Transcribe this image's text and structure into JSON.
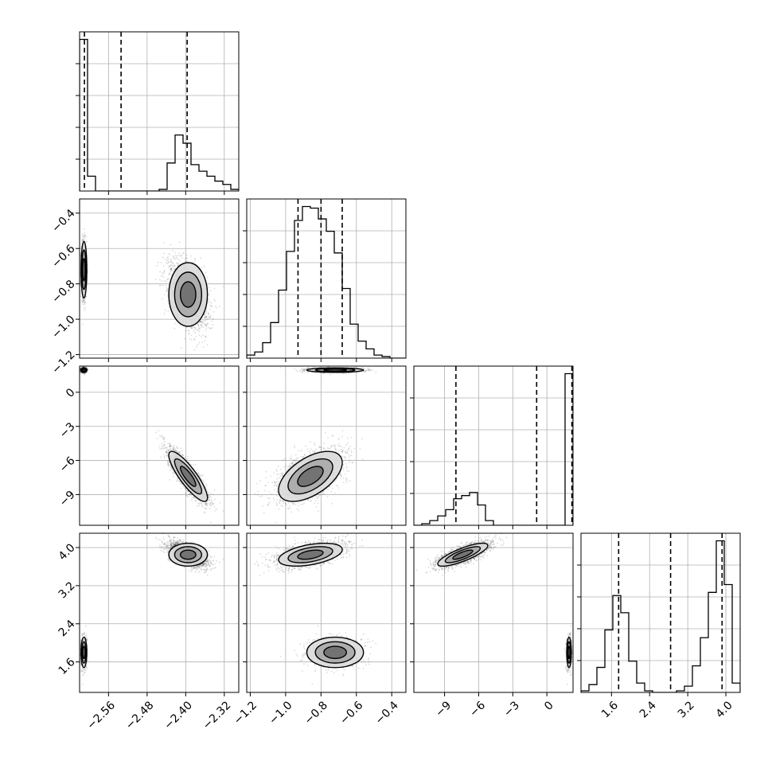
{
  "chart_data": {
    "type": "corner",
    "grid": true,
    "parameters": [
      {
        "range": [
          -2.62,
          -2.29
        ],
        "ticks": [
          -2.56,
          -2.48,
          -2.4,
          -2.32
        ],
        "tick_labels": [
          "−2.56",
          "−2.48",
          "−2.40",
          "−2.32"
        ],
        "quantiles": [
          -2.61,
          -2.534,
          -2.397
        ],
        "histogram": {
          "edges": [
            -2.62,
            -2.6035,
            -2.587,
            -2.5705,
            -2.554,
            -2.5375,
            -2.521,
            -2.5045,
            -2.488,
            -2.4715,
            -2.455,
            -2.4385,
            -2.422,
            -2.4055,
            -2.389,
            -2.3725,
            -2.356,
            -2.3395,
            -2.323,
            -2.3065,
            -2.29
          ],
          "counts": [
            0.92,
            0.09,
            0,
            0,
            0,
            0,
            0,
            0,
            0,
            0,
            0.01,
            0.17,
            0.34,
            0.29,
            0.16,
            0.12,
            0.09,
            0.06,
            0.04,
            0.01
          ]
        }
      },
      {
        "range": [
          -1.22,
          -0.32
        ],
        "ticks": [
          -1.2,
          -1.0,
          -0.8,
          -0.6,
          -0.4
        ],
        "tick_labels": [
          "−1.2",
          "−1.0",
          "−0.8",
          "−0.6",
          "−0.4"
        ],
        "quantiles": [
          -0.93,
          -0.8,
          -0.68
        ],
        "histogram": {
          "edges": [
            -1.22,
            -1.175,
            -1.13,
            -1.085,
            -1.04,
            -0.995,
            -0.95,
            -0.905,
            -0.86,
            -0.815,
            -0.77,
            -0.725,
            -0.68,
            -0.635,
            -0.59,
            -0.545,
            -0.5,
            -0.455,
            -0.41,
            -0.365,
            -0.32
          ],
          "counts": [
            0.02,
            0.04,
            0.1,
            0.23,
            0.44,
            0.69,
            0.89,
            0.98,
            0.97,
            0.9,
            0.82,
            0.68,
            0.45,
            0.22,
            0.11,
            0.06,
            0.02,
            0.01,
            0,
            0
          ]
        }
      },
      {
        "range": [
          -11.7,
          2.3
        ],
        "ticks": [
          -9,
          -6,
          -3,
          0
        ],
        "tick_labels": [
          "−9",
          "−6",
          "−3",
          "0"
        ],
        "quantiles": [
          -8.0,
          -0.9,
          2.2
        ],
        "histogram": {
          "edges": [
            -11.7,
            -11.0,
            -10.3,
            -9.6,
            -8.9,
            -8.2,
            -7.5,
            -6.8,
            -6.1,
            -5.4,
            -4.7,
            -4.0,
            -3.3,
            -2.6,
            -1.9,
            -1.2,
            -0.5,
            0.2,
            0.9,
            1.6,
            2.3
          ],
          "counts": [
            0,
            0.01,
            0.03,
            0.06,
            0.1,
            0.17,
            0.19,
            0.21,
            0.13,
            0.03,
            0,
            0,
            0,
            0,
            0,
            0,
            0,
            0,
            0,
            0.97
          ]
        }
      },
      {
        "range": [
          0.96,
          4.3
        ],
        "ticks": [
          1.6,
          2.4,
          3.2,
          4.0
        ],
        "tick_labels": [
          "1.6",
          "2.4",
          "3.2",
          "4.0"
        ],
        "quantiles": [
          1.75,
          2.84,
          3.92
        ],
        "histogram": {
          "edges": [
            0.96,
            1.127,
            1.294,
            1.461,
            1.628,
            1.795,
            1.962,
            2.129,
            2.296,
            2.463,
            2.63,
            2.797,
            2.964,
            3.131,
            3.298,
            3.465,
            3.632,
            3.799,
            3.966,
            4.133,
            4.3
          ],
          "counts": [
            0.01,
            0.05,
            0.16,
            0.4,
            0.62,
            0.51,
            0.2,
            0.06,
            0.01,
            0,
            0,
            0,
            0.01,
            0.04,
            0.17,
            0.35,
            0.64,
            0.97,
            0.69,
            0.06
          ]
        }
      }
    ],
    "modes": [
      {
        "weight": 0.3,
        "center": [
          -2.611,
          -0.72,
          1.95,
          1.8
        ],
        "sd": [
          0.003,
          0.08,
          0.1,
          0.16
        ]
      },
      {
        "weight": 0.7,
        "center": [
          -2.395,
          -0.86,
          -7.4,
          3.85
        ],
        "sd": [
          0.02,
          0.09,
          1.1,
          0.12
        ]
      }
    ]
  }
}
